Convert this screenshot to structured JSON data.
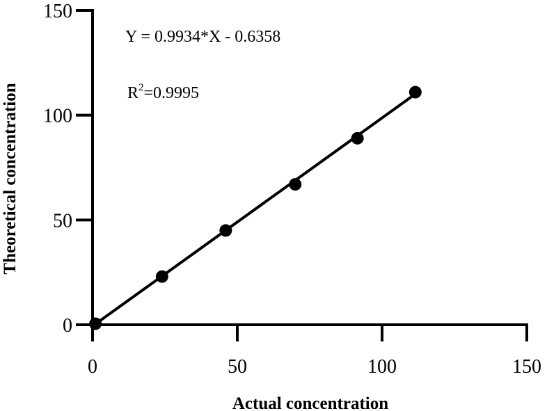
{
  "chart_data": {
    "type": "scatter",
    "title": "",
    "xlabel": "Actual concentration",
    "ylabel": "Theoretical concentration",
    "xlim": [
      0,
      150
    ],
    "ylim": [
      0,
      150
    ],
    "x_ticks": [
      0,
      50,
      100,
      150
    ],
    "y_ticks": [
      0,
      50,
      100,
      150
    ],
    "x_tick_labels": [
      "0",
      "50",
      "100",
      "150"
    ],
    "y_tick_labels": [
      "0",
      "50",
      "100",
      "150"
    ],
    "grid": false,
    "series": [
      {
        "x": [
          1,
          24,
          46,
          70,
          91.5,
          111.5
        ],
        "y": [
          0.5,
          23,
          45,
          67,
          89,
          111
        ],
        "color": "#000000",
        "marker": "circle"
      }
    ],
    "fit_line": {
      "slope": 0.9934,
      "intercept": -0.6358,
      "x_range": [
        1,
        111.5
      ],
      "color": "#000000"
    },
    "annotations": {
      "equation": "Y = 0.9934*X - 0.6358",
      "r2_prefix": "R",
      "r2_sup": "2",
      "r2_value": "=0.9995"
    }
  }
}
